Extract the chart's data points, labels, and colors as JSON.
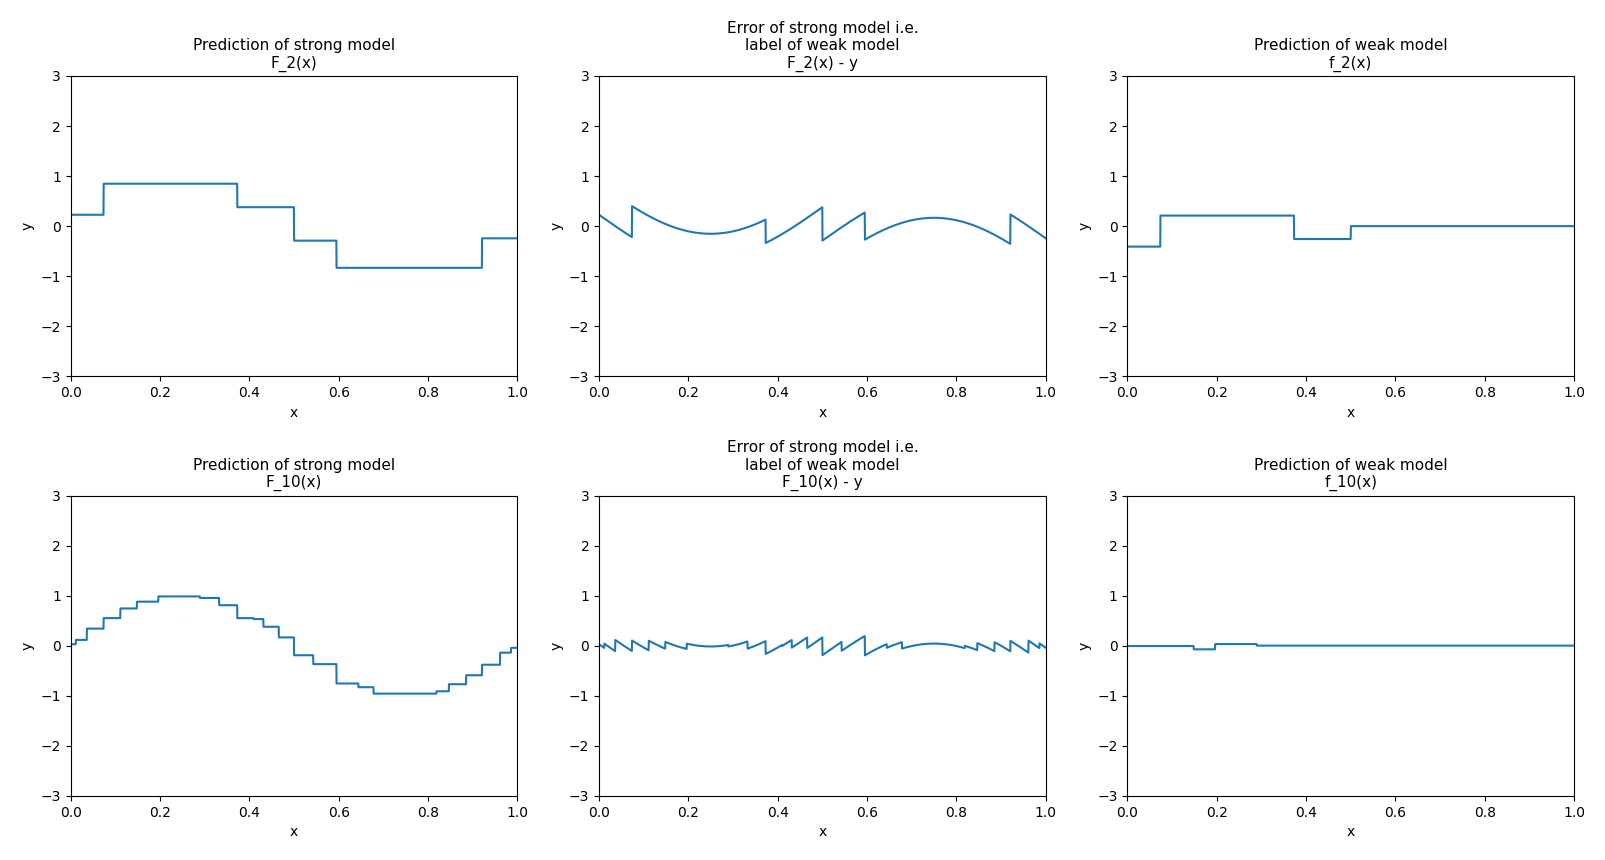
{
  "line_color": "#1f77b4",
  "background_color": "#ffffff",
  "ylim": [
    -3,
    3
  ],
  "xlim": [
    0.0,
    1.0
  ],
  "xlabel": "x",
  "ylabel": "y",
  "titles_row1": [
    "Prediction of strong model\nF_2(x)",
    "Error of strong model i.e.\nlabel of weak model\nF_2(x) - y",
    "Prediction of weak model\nf_2(x)"
  ],
  "titles_row2": [
    "Prediction of strong model\nF_10(x)",
    "Error of strong model i.e.\nlabel of weak model\nF_10(x) - y",
    "Prediction of weak model\nf_10(x)"
  ],
  "n_points": 2000
}
